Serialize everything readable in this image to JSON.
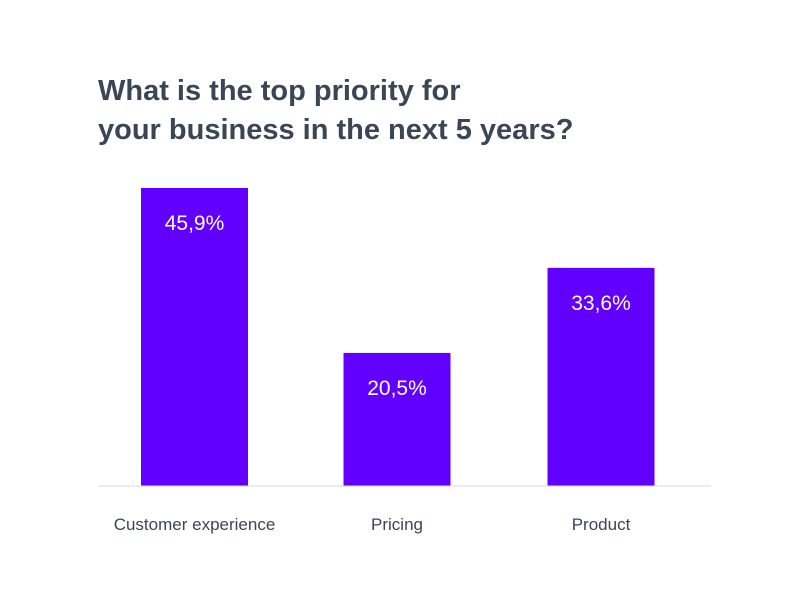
{
  "chart_data": {
    "type": "bar",
    "title_lines": [
      "What is the top priority for",
      "your business in the next 5 years?"
    ],
    "categories": [
      "Customer experience",
      "Pricing",
      "Product"
    ],
    "values": [
      45.9,
      20.5,
      33.6
    ],
    "value_labels": [
      "45,9%",
      "20,5%",
      "33,6%"
    ],
    "unit": "%",
    "ylim": [
      0,
      45.9
    ],
    "grid": false,
    "legend": "none",
    "bar_color": "#6200ff",
    "baseline_color": "#d9d9d9",
    "title_color": "#3a4555",
    "label_color": "#3a4555",
    "value_label_color": "#ffffff"
  }
}
